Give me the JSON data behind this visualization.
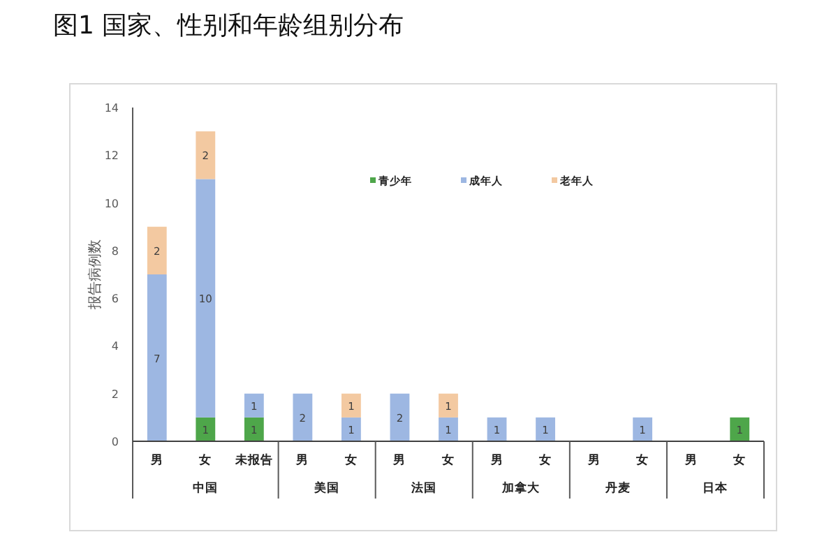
{
  "chart_data": {
    "type": "bar",
    "title": "图1    国家、性别和年龄组别分布",
    "ylabel": "报告病例数",
    "categories": [
      "男",
      "女",
      "未报告",
      "男",
      "女",
      "男",
      "女",
      "男",
      "女",
      "男",
      "女",
      "男",
      "女"
    ],
    "annotations": [
      "中国",
      "美国",
      "法国",
      "加拿大",
      "丹麦",
      "日本"
    ],
    "series": [
      {
        "name": "青少年",
        "color": "#4ea64a",
        "values": [
          null,
          1,
          1,
          null,
          null,
          null,
          null,
          null,
          null,
          null,
          null,
          null,
          1
        ]
      },
      {
        "name": "成年人",
        "color": "#9db7e2",
        "values": [
          7,
          10,
          1,
          2,
          1,
          2,
          1,
          1,
          1,
          null,
          1,
          null,
          null
        ]
      },
      {
        "name": "老年人",
        "color": "#f3c9a1",
        "values": [
          2,
          2,
          null,
          null,
          1,
          null,
          1,
          null,
          null,
          null,
          null,
          null,
          null
        ]
      }
    ],
    "stacked": true,
    "ylim": [
      0,
      14
    ],
    "yticks": [
      0,
      2,
      4,
      6,
      8,
      10,
      12,
      14
    ],
    "grid": false,
    "legend": "top",
    "data_labels": true
  }
}
